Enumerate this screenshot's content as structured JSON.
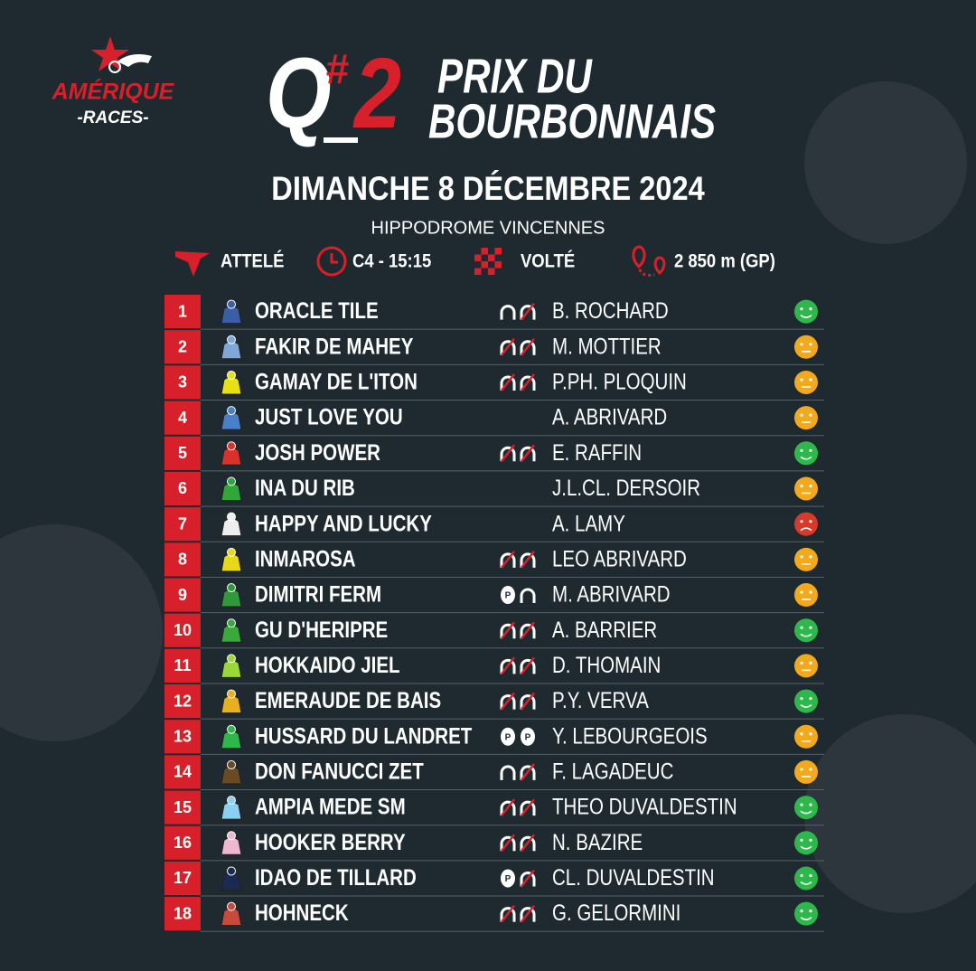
{
  "header": {
    "logo": {
      "brand": "AMÉRIQUE",
      "sub": "-RACES-"
    },
    "race": {
      "q": "Q",
      "hash": "#",
      "number": "2",
      "name_line1": "PRIX DU",
      "name_line2": "BOURBONNAIS"
    },
    "date": "DIMANCHE 8 DÉCEMBRE 2024",
    "venue": "HIPPODROME VINCENNES",
    "info": [
      "ATTELÉ",
      "C4 - 15:15",
      "VOLTÉ",
      "2 850 m (GP)"
    ]
  },
  "runners": [
    {
      "number": "1",
      "horse": "ORACLE TILE",
      "driver": "B. ROCHARD",
      "shoes": [
        "shod",
        "unshod"
      ],
      "silk": "#3a5fa8",
      "mood_color": "#2eb84b"
    },
    {
      "number": "2",
      "horse": "FAKIR DE MAHEY",
      "driver": "M. MOTTIER",
      "shoes": [
        "unshod",
        "unshod"
      ],
      "silk": "#7fa8d8",
      "mood_color": "#f2a91c"
    },
    {
      "number": "3",
      "horse": "GAMAY DE L'ITON",
      "driver": "P.PH. PLOQUIN",
      "shoes": [
        "unshod",
        "unshod"
      ],
      "silk": "#e6e014",
      "mood_color": "#f2a91c"
    },
    {
      "number": "4",
      "horse": "JUST LOVE YOU",
      "driver": "A. ABRIVARD",
      "shoes": [],
      "silk": "#4a80c8",
      "mood_color": "#f2a91c"
    },
    {
      "number": "5",
      "horse": "JOSH POWER",
      "driver": "E. RAFFIN",
      "shoes": [
        "unshod",
        "unshod"
      ],
      "silk": "#d8322a",
      "mood_color": "#2eb84b"
    },
    {
      "number": "6",
      "horse": "INA DU RIB",
      "driver": "J.L.CL. DERSOIR",
      "shoes": [],
      "silk": "#2fa83a",
      "mood_color": "#f2a91c"
    },
    {
      "number": "7",
      "horse": "HAPPY AND LUCKY",
      "driver": "A. LAMY",
      "shoes": [],
      "silk": "#eeeeee",
      "mood_color": "#d83a2a"
    },
    {
      "number": "8",
      "horse": "INMAROSA",
      "driver": "LEO ABRIVARD",
      "shoes": [
        "unshod",
        "unshod"
      ],
      "silk": "#e8d81a",
      "mood_color": "#f2a91c"
    },
    {
      "number": "9",
      "horse": "DIMITRI FERM",
      "driver": "M. ABRIVARD",
      "shoes": [
        "plate",
        "shod"
      ],
      "silk": "#2f9a3a",
      "mood_color": "#f2a91c"
    },
    {
      "number": "10",
      "horse": "GU D'HERIPRE",
      "driver": "A. BARRIER",
      "shoes": [
        "unshod",
        "unshod"
      ],
      "silk": "#3aa83a",
      "mood_color": "#2eb84b"
    },
    {
      "number": "11",
      "horse": "HOKKAIDO JIEL",
      "driver": "D. THOMAIN",
      "shoes": [
        "unshod",
        "unshod"
      ],
      "silk": "#9ad83a",
      "mood_color": "#f2a91c"
    },
    {
      "number": "12",
      "horse": "EMERAUDE DE BAIS",
      "driver": "P.Y. VERVA",
      "shoes": [
        "unshod",
        "unshod"
      ],
      "silk": "#e8b020",
      "mood_color": "#2eb84b"
    },
    {
      "number": "13",
      "horse": "HUSSARD DU LANDRET",
      "driver": "Y. LEBOURGEOIS",
      "shoes": [
        "plate",
        "plate"
      ],
      "silk": "#2fb84a",
      "mood_color": "#f2a91c"
    },
    {
      "number": "14",
      "horse": "DON FANUCCI ZET",
      "driver": "F. LAGADEUC",
      "shoes": [
        "shod",
        "unshod"
      ],
      "silk": "#6a4a20",
      "mood_color": "#f2a91c"
    },
    {
      "number": "15",
      "horse": "AMPIA MEDE SM",
      "driver": "THEO DUVALDESTIN",
      "shoes": [
        "unshod",
        "unshod"
      ],
      "silk": "#8ad0f0",
      "mood_color": "#2eb84b"
    },
    {
      "number": "16",
      "horse": "HOOKER BERRY",
      "driver": "N. BAZIRE",
      "shoes": [
        "unshod",
        "unshod"
      ],
      "silk": "#f0b8d0",
      "mood_color": "#2eb84b"
    },
    {
      "number": "17",
      "horse": "IDAO DE TILLARD",
      "driver": "CL. DUVALDESTIN",
      "shoes": [
        "plate",
        "unshod"
      ],
      "silk": "#1a2a50",
      "mood_color": "#2eb84b"
    },
    {
      "number": "18",
      "horse": "HOHNECK",
      "driver": "G. GELORMINI",
      "shoes": [
        "unshod",
        "unshod"
      ],
      "silk": "#c84a3a",
      "mood_color": "#2eb84b"
    }
  ]
}
